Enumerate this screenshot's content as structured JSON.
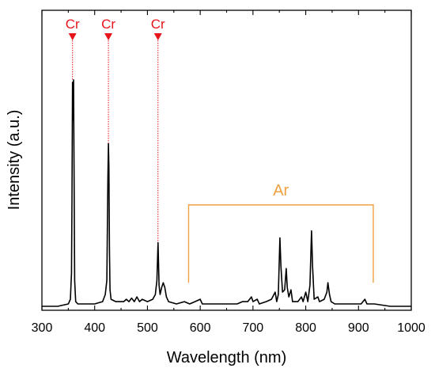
{
  "chart_data": {
    "type": "line",
    "xlabel": "Wavelength (nm)",
    "ylabel": "Intensity (a.u.)",
    "xlim": [
      300,
      1000
    ],
    "ylim": [
      0,
      1
    ],
    "x_ticks": [
      "300",
      "400",
      "500",
      "600",
      "700",
      "800",
      "900",
      "1000"
    ],
    "grid": false,
    "series": [
      {
        "color": "#000000",
        "points": [
          [
            300,
            0.01
          ],
          [
            330,
            0.01
          ],
          [
            350,
            0.02
          ],
          [
            354,
            0.04
          ],
          [
            356,
            0.15
          ],
          [
            357,
            0.45
          ],
          [
            358,
            0.96
          ],
          [
            359,
            0.8
          ],
          [
            360,
            0.97
          ],
          [
            361,
            0.55
          ],
          [
            362,
            0.12
          ],
          [
            364,
            0.03
          ],
          [
            368,
            0.02
          ],
          [
            380,
            0.02
          ],
          [
            400,
            0.02
          ],
          [
            415,
            0.03
          ],
          [
            420,
            0.06
          ],
          [
            423,
            0.12
          ],
          [
            425,
            0.55
          ],
          [
            426,
            0.7
          ],
          [
            427,
            0.6
          ],
          [
            428,
            0.25
          ],
          [
            429,
            0.08
          ],
          [
            431,
            0.04
          ],
          [
            440,
            0.03
          ],
          [
            455,
            0.03
          ],
          [
            460,
            0.04
          ],
          [
            465,
            0.03
          ],
          [
            470,
            0.045
          ],
          [
            475,
            0.03
          ],
          [
            480,
            0.05
          ],
          [
            485,
            0.03
          ],
          [
            490,
            0.04
          ],
          [
            500,
            0.03
          ],
          [
            510,
            0.04
          ],
          [
            515,
            0.06
          ],
          [
            518,
            0.12
          ],
          [
            520,
            0.28
          ],
          [
            521,
            0.2
          ],
          [
            522,
            0.1
          ],
          [
            524,
            0.06
          ],
          [
            527,
            0.09
          ],
          [
            530,
            0.11
          ],
          [
            533,
            0.09
          ],
          [
            536,
            0.05
          ],
          [
            540,
            0.03
          ],
          [
            555,
            0.02
          ],
          [
            570,
            0.03
          ],
          [
            580,
            0.02
          ],
          [
            590,
            0.03
          ],
          [
            600,
            0.04
          ],
          [
            604,
            0.02
          ],
          [
            620,
            0.02
          ],
          [
            650,
            0.02
          ],
          [
            670,
            0.02
          ],
          [
            680,
            0.03
          ],
          [
            690,
            0.03
          ],
          [
            697,
            0.05
          ],
          [
            700,
            0.03
          ],
          [
            708,
            0.04
          ],
          [
            712,
            0.02
          ],
          [
            725,
            0.03
          ],
          [
            735,
            0.04
          ],
          [
            742,
            0.07
          ],
          [
            745,
            0.03
          ],
          [
            748,
            0.06
          ],
          [
            751,
            0.3
          ],
          [
            753,
            0.18
          ],
          [
            756,
            0.07
          ],
          [
            760,
            0.08
          ],
          [
            763,
            0.17
          ],
          [
            765,
            0.09
          ],
          [
            768,
            0.05
          ],
          [
            772,
            0.08
          ],
          [
            775,
            0.03
          ],
          [
            785,
            0.03
          ],
          [
            792,
            0.05
          ],
          [
            795,
            0.03
          ],
          [
            800,
            0.07
          ],
          [
            804,
            0.03
          ],
          [
            808,
            0.1
          ],
          [
            811,
            0.33
          ],
          [
            813,
            0.18
          ],
          [
            816,
            0.04
          ],
          [
            823,
            0.05
          ],
          [
            826,
            0.03
          ],
          [
            835,
            0.04
          ],
          [
            840,
            0.07
          ],
          [
            842,
            0.11
          ],
          [
            845,
            0.06
          ],
          [
            848,
            0.03
          ],
          [
            855,
            0.02
          ],
          [
            870,
            0.02
          ],
          [
            890,
            0.02
          ],
          [
            905,
            0.02
          ],
          [
            912,
            0.04
          ],
          [
            916,
            0.02
          ],
          [
            930,
            0.02
          ],
          [
            960,
            0.01
          ],
          [
            1000,
            0.01
          ]
        ]
      }
    ],
    "annotations": {
      "peaks": [
        {
          "label": "Cr",
          "x": 358,
          "y": 0.97,
          "color": "#e8141b"
        },
        {
          "label": "Cr",
          "x": 426,
          "y": 0.7,
          "color": "#e8141b"
        },
        {
          "label": "Cr",
          "x": 520,
          "y": 0.28,
          "color": "#e8141b"
        }
      ],
      "region": {
        "label": "Ar",
        "x_start": 578,
        "x_end": 928,
        "y": 0.44,
        "y_bottom": 0.11,
        "color": "#f0a040"
      }
    }
  }
}
